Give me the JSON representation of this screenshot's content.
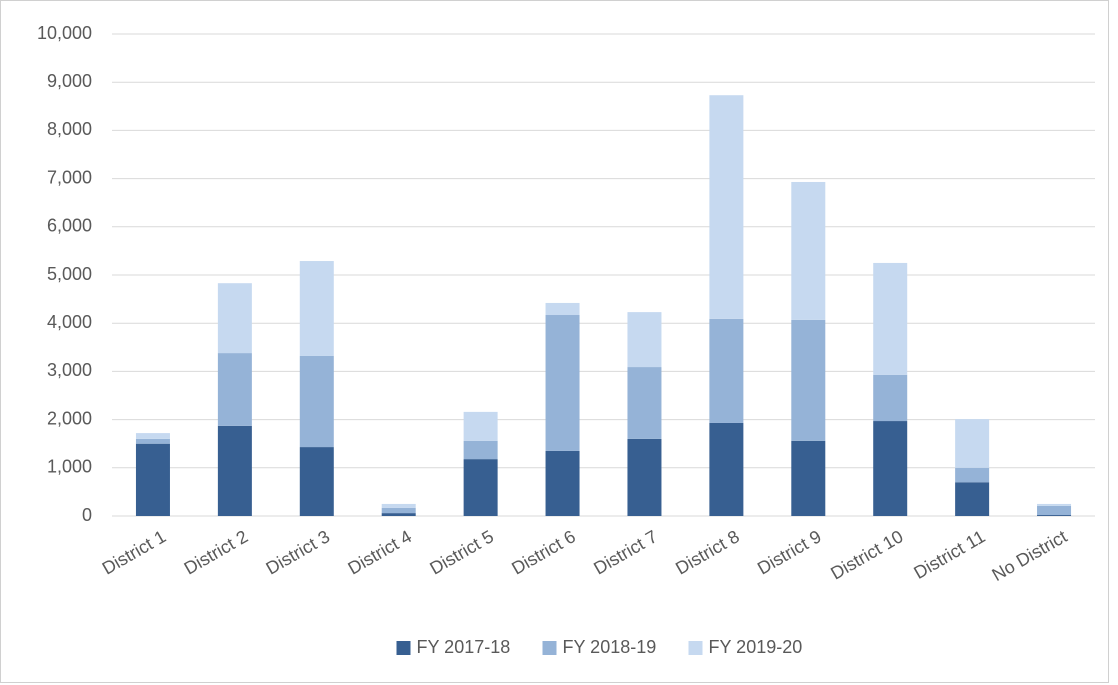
{
  "chart_data": {
    "type": "stacked_bar",
    "categories": [
      "District 1",
      "District 2",
      "District 3",
      "District 4",
      "District 5",
      "District 6",
      "District 7",
      "District 8",
      "District 9",
      "District 10",
      "District 11",
      "No District"
    ],
    "series": [
      {
        "name": "FY 2017-18",
        "color": "#375f91",
        "values": [
          1500,
          1870,
          1430,
          60,
          1180,
          1350,
          1600,
          1930,
          1560,
          1970,
          700,
          20
        ]
      },
      {
        "name": "FY 2018-19",
        "color": "#95b3d7",
        "values": [
          100,
          1510,
          1890,
          110,
          380,
          2820,
          1490,
          2160,
          2510,
          960,
          300,
          190
        ]
      },
      {
        "name": "FY 2019-20",
        "color": "#c6d9f0",
        "values": [
          120,
          1450,
          1970,
          80,
          600,
          250,
          1140,
          4640,
          2860,
          2320,
          1010,
          40
        ]
      }
    ],
    "ylim": [
      0,
      10000
    ],
    "yticks": [
      0,
      {
        "value": 1000,
        "label": "1,000"
      },
      {
        "value": 2000,
        "label": "2,000"
      },
      {
        "value": 3000,
        "label": "3,000"
      },
      {
        "value": 4000,
        "label": "4,000"
      },
      {
        "value": 5000,
        "label": "5,000"
      },
      {
        "value": 6000,
        "label": "6,000"
      },
      {
        "value": 7000,
        "label": "7,000"
      },
      {
        "value": 8000,
        "label": "8,000"
      },
      {
        "value": 9000,
        "label": "9,000"
      },
      {
        "value": 10000,
        "label": "10,000"
      }
    ],
    "grid": true,
    "legend": "bottom"
  }
}
